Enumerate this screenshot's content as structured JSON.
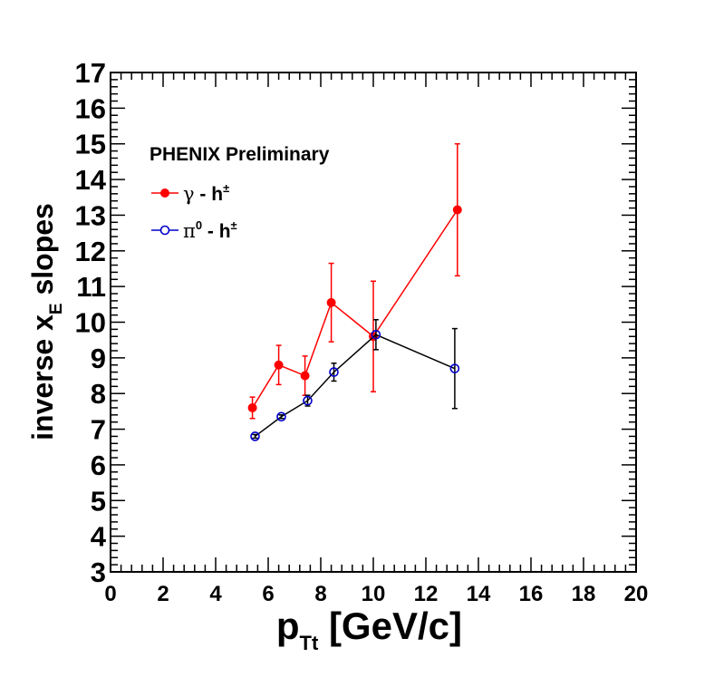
{
  "chart_data": {
    "type": "scatter",
    "title": "",
    "annotation": "PHENIX Preliminary",
    "xlabel": {
      "main": "p",
      "sub": "Tt",
      "rest": " [GeV/c]"
    },
    "ylabel": {
      "main": "inverse x",
      "sub": "E",
      "rest": " slopes"
    },
    "xlim": [
      0,
      20
    ],
    "ylim": [
      3,
      17
    ],
    "x_ticks": [
      0,
      2,
      4,
      6,
      8,
      10,
      12,
      14,
      16,
      18,
      20
    ],
    "y_ticks": [
      3,
      4,
      5,
      6,
      7,
      8,
      9,
      10,
      11,
      12,
      13,
      14,
      15,
      16,
      17
    ],
    "x_tick_labels": [
      "0",
      "2",
      "4",
      "6",
      "8",
      "10",
      "12",
      "14",
      "16",
      "18",
      "20"
    ],
    "y_tick_labels": [
      "3",
      "4",
      "5",
      "6",
      "7",
      "8",
      "9",
      "10",
      "11",
      "12",
      "13",
      "14",
      "15",
      "16",
      "17"
    ],
    "grid": false,
    "legend_position": "top-left",
    "series": [
      {
        "name": "γ - h±",
        "legend_main": "γ - h",
        "legend_sup": "±",
        "color": "#ff0000",
        "marker": "filled-circle",
        "points": [
          {
            "x": 5.4,
            "y": 7.6,
            "yerr": 0.3
          },
          {
            "x": 6.4,
            "y": 8.8,
            "yerr": 0.55
          },
          {
            "x": 7.4,
            "y": 8.5,
            "yerr": 0.55
          },
          {
            "x": 8.4,
            "y": 10.55,
            "yerr": 1.1
          },
          {
            "x": 10.0,
            "y": 9.6,
            "yerr": 1.55
          },
          {
            "x": 13.2,
            "y": 13.15,
            "yerr": 1.85
          }
        ]
      },
      {
        "name": "π0 - h±",
        "legend_main": "π",
        "legend_sup0": "0",
        "legend_rest": " - h",
        "legend_sup": "±",
        "color": "#0000cc",
        "error_color": "#000000",
        "marker": "open-circle",
        "points": [
          {
            "x": 5.5,
            "y": 6.8,
            "yerr": 0.05
          },
          {
            "x": 6.5,
            "y": 7.35,
            "yerr": 0.05
          },
          {
            "x": 7.5,
            "y": 7.8,
            "yerr": 0.15
          },
          {
            "x": 8.5,
            "y": 8.6,
            "yerr": 0.25
          },
          {
            "x": 10.1,
            "y": 9.65,
            "yerr": 0.42
          },
          {
            "x": 13.1,
            "y": 8.7,
            "yerr": 1.12
          }
        ]
      }
    ]
  }
}
